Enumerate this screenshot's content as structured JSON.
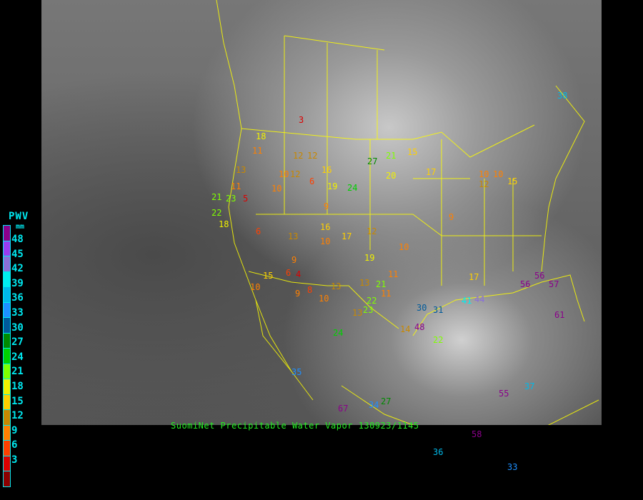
{
  "legend": {
    "title": "PWV",
    "unit": "mm",
    "ticks": [
      "48",
      "45",
      "42",
      "39",
      "36",
      "33",
      "30",
      "27",
      "24",
      "21",
      "18",
      "15",
      "12",
      "9",
      "6",
      "3"
    ],
    "colors": [
      "#8b008b",
      "#9a3cf0",
      "#8a70d8",
      "#00eef0",
      "#00b8e8",
      "#1e90ff",
      "#005a9a",
      "#008a00",
      "#00d000",
      "#80ff00",
      "#f0f000",
      "#ffd000",
      "#c88800",
      "#ff8000",
      "#ff4000",
      "#dd0000",
      "#8b0000"
    ]
  },
  "caption": "SuomiNet Precipitable Water Vapor 130923/1145",
  "stations": [
    "3",
    "18",
    "11",
    "12",
    "12",
    "16",
    "10",
    "6",
    "19",
    "24",
    "27",
    "21",
    "15",
    "20",
    "13",
    "11",
    "10",
    "12",
    "9",
    "5",
    "6",
    "21",
    "23",
    "22",
    "18",
    "16",
    "13",
    "9",
    "6",
    "4",
    "8",
    "10",
    "10",
    "13",
    "9",
    "15",
    "10",
    "12",
    "13",
    "17",
    "19",
    "11",
    "17",
    "23",
    "21",
    "22",
    "30",
    "31",
    "41",
    "44",
    "56",
    "57",
    "56",
    "61",
    "24",
    "13",
    "11",
    "14",
    "48",
    "35",
    "67",
    "34",
    "27",
    "36",
    "33",
    "58",
    "55",
    "37",
    "38",
    "22",
    "10",
    "10",
    "12",
    "15",
    "9",
    "17",
    "10"
  ],
  "colors": {
    "state_borders": "#ffff00",
    "coastline": "#ffff00",
    "caption": "#22ee22",
    "legend_text": "#00e8f0"
  }
}
